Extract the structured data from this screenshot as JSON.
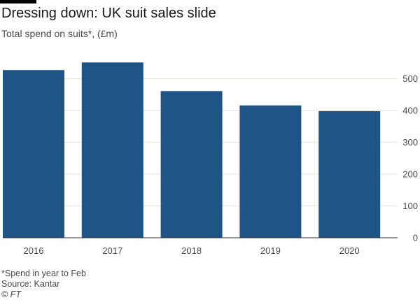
{
  "header": {
    "title": "Dressing down: UK suit sales slide",
    "subtitle": "Total spend on suits*, (£m)"
  },
  "footer": {
    "note": "*Spend in year to Feb",
    "source": "Source: Kantar",
    "credit": "© FT"
  },
  "colors": {
    "bar": "#1f5487",
    "grid": "#e6e2dc",
    "baseline": "#33302e",
    "text": "#4d4845"
  },
  "chart_data": {
    "type": "bar",
    "title": "Dressing down: UK suit sales slide",
    "subtitle": "Total spend on suits*, (£m)",
    "categories": [
      "2016",
      "2017",
      "2018",
      "2019",
      "2020"
    ],
    "values": [
      527,
      551,
      461,
      416,
      398
    ],
    "ylim": [
      0,
      550
    ],
    "yticks": [
      0,
      100,
      200,
      300,
      400,
      500
    ],
    "y_axis_side": "right",
    "grid": true,
    "legend": "none"
  }
}
